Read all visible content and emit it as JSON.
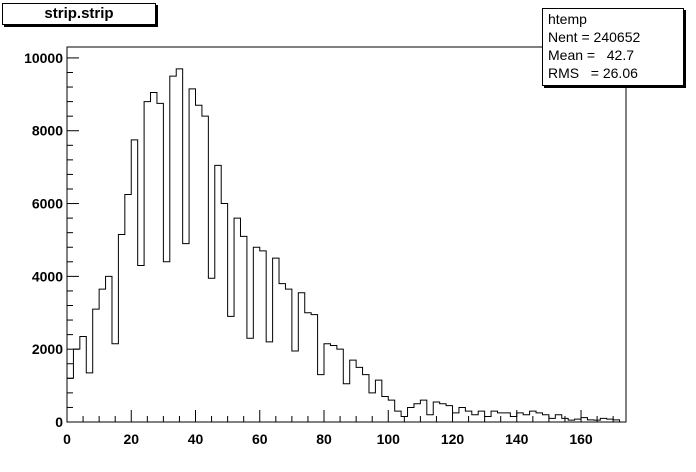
{
  "chart_data": {
    "type": "histogram",
    "title": "strip.strip",
    "xlim": [
      0,
      174
    ],
    "ylim": [
      0,
      10300
    ],
    "bin_width": 2,
    "x_ticks": [
      0,
      20,
      40,
      60,
      80,
      100,
      120,
      140,
      160
    ],
    "y_ticks": [
      0,
      2000,
      4000,
      6000,
      8000,
      10000
    ],
    "bins": [
      {
        "x": 1,
        "y": 1200
      },
      {
        "x": 3,
        "y": 2000
      },
      {
        "x": 5,
        "y": 2350
      },
      {
        "x": 7,
        "y": 1350
      },
      {
        "x": 9,
        "y": 3100
      },
      {
        "x": 11,
        "y": 3650
      },
      {
        "x": 13,
        "y": 4000
      },
      {
        "x": 15,
        "y": 2150
      },
      {
        "x": 17,
        "y": 5150
      },
      {
        "x": 19,
        "y": 6250
      },
      {
        "x": 21,
        "y": 7750
      },
      {
        "x": 23,
        "y": 4300
      },
      {
        "x": 25,
        "y": 8800
      },
      {
        "x": 27,
        "y": 9050
      },
      {
        "x": 29,
        "y": 8750
      },
      {
        "x": 31,
        "y": 4400
      },
      {
        "x": 33,
        "y": 9500
      },
      {
        "x": 35,
        "y": 9700
      },
      {
        "x": 37,
        "y": 4900
      },
      {
        "x": 39,
        "y": 9150
      },
      {
        "x": 41,
        "y": 8700
      },
      {
        "x": 43,
        "y": 8400
      },
      {
        "x": 45,
        "y": 3950
      },
      {
        "x": 47,
        "y": 7050
      },
      {
        "x": 49,
        "y": 6000
      },
      {
        "x": 51,
        "y": 2900
      },
      {
        "x": 53,
        "y": 5600
      },
      {
        "x": 55,
        "y": 5100
      },
      {
        "x": 57,
        "y": 2300
      },
      {
        "x": 59,
        "y": 4800
      },
      {
        "x": 61,
        "y": 4700
      },
      {
        "x": 63,
        "y": 2200
      },
      {
        "x": 65,
        "y": 4500
      },
      {
        "x": 67,
        "y": 3800
      },
      {
        "x": 69,
        "y": 3650
      },
      {
        "x": 71,
        "y": 1950
      },
      {
        "x": 73,
        "y": 3550
      },
      {
        "x": 75,
        "y": 3000
      },
      {
        "x": 77,
        "y": 2950
      },
      {
        "x": 79,
        "y": 1300
      },
      {
        "x": 81,
        "y": 2150
      },
      {
        "x": 83,
        "y": 2100
      },
      {
        "x": 85,
        "y": 2000
      },
      {
        "x": 87,
        "y": 1050
      },
      {
        "x": 89,
        "y": 1700
      },
      {
        "x": 91,
        "y": 1500
      },
      {
        "x": 93,
        "y": 1300
      },
      {
        "x": 95,
        "y": 800
      },
      {
        "x": 97,
        "y": 1150
      },
      {
        "x": 99,
        "y": 700
      },
      {
        "x": 101,
        "y": 600
      },
      {
        "x": 103,
        "y": 300
      },
      {
        "x": 105,
        "y": 150
      },
      {
        "x": 107,
        "y": 400
      },
      {
        "x": 109,
        "y": 500
      },
      {
        "x": 111,
        "y": 600
      },
      {
        "x": 113,
        "y": 200
      },
      {
        "x": 115,
        "y": 550
      },
      {
        "x": 117,
        "y": 500
      },
      {
        "x": 119,
        "y": 450
      },
      {
        "x": 121,
        "y": 250
      },
      {
        "x": 123,
        "y": 400
      },
      {
        "x": 125,
        "y": 300
      },
      {
        "x": 127,
        "y": 200
      },
      {
        "x": 129,
        "y": 300
      },
      {
        "x": 131,
        "y": 150
      },
      {
        "x": 133,
        "y": 300
      },
      {
        "x": 135,
        "y": 250
      },
      {
        "x": 137,
        "y": 250
      },
      {
        "x": 139,
        "y": 150
      },
      {
        "x": 141,
        "y": 250
      },
      {
        "x": 143,
        "y": 200
      },
      {
        "x": 145,
        "y": 300
      },
      {
        "x": 147,
        "y": 250
      },
      {
        "x": 149,
        "y": 200
      },
      {
        "x": 151,
        "y": 100
      },
      {
        "x": 153,
        "y": 200
      },
      {
        "x": 155,
        "y": 100
      },
      {
        "x": 157,
        "y": 50
      },
      {
        "x": 159,
        "y": 80
      },
      {
        "x": 161,
        "y": 120
      },
      {
        "x": 163,
        "y": 60
      },
      {
        "x": 165,
        "y": 50
      },
      {
        "x": 167,
        "y": 100
      },
      {
        "x": 169,
        "y": 80
      },
      {
        "x": 171,
        "y": 60
      },
      {
        "x": 173,
        "y": 0
      }
    ],
    "stats": {
      "name": "htemp",
      "rows": [
        {
          "label": "Nent",
          "value": "240652"
        },
        {
          "label": "Mean",
          "value": "42.7"
        },
        {
          "label": "RMS",
          "value": "26.06"
        }
      ]
    },
    "grid": false,
    "legend": "top-right"
  }
}
